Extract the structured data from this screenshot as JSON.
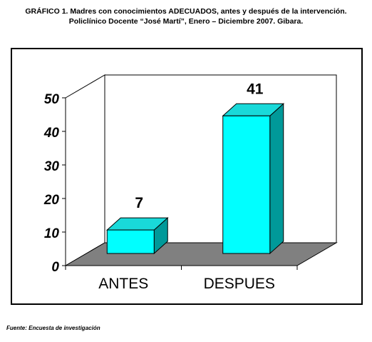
{
  "title_line1": "GRÁFICO 1. Madres con conocimientos ADECUADOS, antes y después de la intervención.",
  "title_line2": "Policlínico Docente “José Martí”, Enero  – Diciembre 2007. Gibara.",
  "source": "Fuente: Encuesta de investigación",
  "chart_data": {
    "type": "bar",
    "categories": [
      "ANTES",
      "DESPUES"
    ],
    "values": [
      7,
      41
    ],
    "data_labels": [
      "7",
      "41"
    ],
    "y_ticks": [
      "0",
      "10",
      "20",
      "30",
      "40",
      "50"
    ],
    "ylim": [
      0,
      50
    ],
    "xlabel": "",
    "ylabel": "",
    "grid": false,
    "three_d": true,
    "colors": {
      "bar_front": "#00ffff",
      "bar_side": "#009999",
      "bar_top": "#19d9d9",
      "floor": "#808080",
      "wall": "#ffffff"
    }
  }
}
